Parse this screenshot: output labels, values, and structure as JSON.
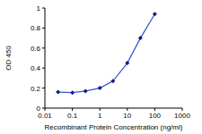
{
  "chart_data": {
    "type": "line",
    "x_label": "Recombinant Protein Concentration (ng/ml)",
    "y_label": "OD 450",
    "x": [
      0.03,
      0.1,
      0.3,
      1,
      3,
      10,
      30,
      100
    ],
    "values": [
      0.16,
      0.155,
      0.17,
      0.2,
      0.27,
      0.45,
      0.7,
      0.94
    ],
    "color": "#3355cc",
    "marker": "diamond",
    "log": "x",
    "xlim": [
      0.01,
      1000
    ],
    "ylim": [
      0,
      1
    ],
    "xticks": [
      0.01,
      0.1,
      1,
      10,
      100,
      1000
    ],
    "yticks": [
      0,
      0.2,
      0.4,
      0.6,
      0.8,
      1
    ]
  }
}
